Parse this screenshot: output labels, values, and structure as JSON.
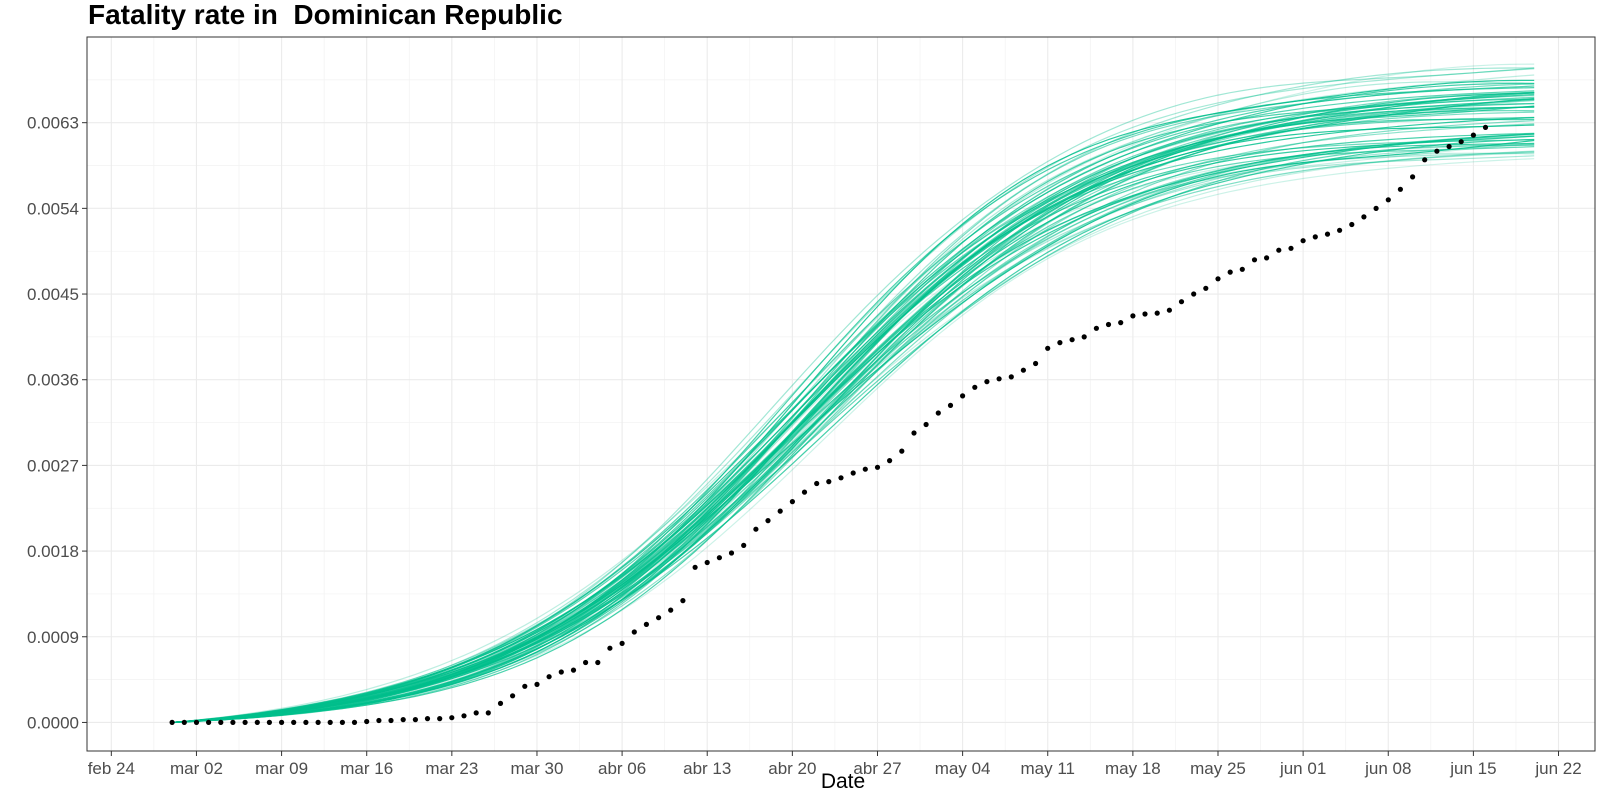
{
  "chart_data": {
    "type": "line",
    "title": "Fatality rate in  Dominican Republic",
    "xlabel": "Date",
    "ylabel": "",
    "grid": true,
    "legend": "none",
    "x_ticks": [
      "feb 24",
      "mar 02",
      "mar 09",
      "mar 16",
      "mar 23",
      "mar 30",
      "abr 06",
      "abr 13",
      "abr 20",
      "abr 27",
      "may 04",
      "may 11",
      "may 18",
      "may 25",
      "jun 01",
      "jun 08",
      "jun 15",
      "jun 22"
    ],
    "y_ticks": [
      "0.0000",
      "0.0009",
      "0.0018",
      "0.0027",
      "0.0036",
      "0.0045",
      "0.0054",
      "0.0063"
    ],
    "xlim": [
      "2020-02-22",
      "2020-06-25"
    ],
    "ylim": [
      -0.0003,
      0.0072
    ],
    "simulation_series": {
      "description_count": 60,
      "color": "#00BF8C",
      "x_start": "2020-02-29",
      "x_end": "2020-06-20",
      "final_value_range": [
        0.0057,
        0.0069
      ]
    },
    "observed": {
      "color": "#000000",
      "x_start": "2020-02-29",
      "x_end": "2020-06-20",
      "values": [
        0.0,
        0.0,
        0.0,
        0.0,
        0.0,
        0.0,
        0.0,
        0.0,
        0.0,
        0.0,
        0.0,
        0.0,
        0.0,
        0.0,
        0.0,
        0.0,
        1e-05,
        2e-05,
        2e-05,
        3e-05,
        3e-05,
        4e-05,
        4e-05,
        5e-05,
        7e-05,
        0.0001,
        0.0001,
        0.0002,
        0.00028,
        0.00038,
        0.0004,
        0.00048,
        0.00053,
        0.00055,
        0.00063,
        0.00063,
        0.00078,
        0.00083,
        0.00095,
        0.00103,
        0.0011,
        0.00118,
        0.00128,
        0.00163,
        0.00168,
        0.00173,
        0.00178,
        0.00186,
        0.00203,
        0.00212,
        0.00222,
        0.00232,
        0.00242,
        0.00251,
        0.00253,
        0.00257,
        0.00262,
        0.00266,
        0.00268,
        0.00275,
        0.00285,
        0.00304,
        0.00313,
        0.00325,
        0.00333,
        0.00343,
        0.00352,
        0.00358,
        0.00361,
        0.00363,
        0.0037,
        0.00377,
        0.00393,
        0.00399,
        0.00402,
        0.00405,
        0.00414,
        0.00418,
        0.0042,
        0.00427,
        0.00429,
        0.0043,
        0.00433,
        0.00442,
        0.0045,
        0.00456,
        0.00466,
        0.00473,
        0.00476,
        0.00486,
        0.00488,
        0.00496,
        0.00498,
        0.00506,
        0.0051,
        0.00513,
        0.00517,
        0.00523,
        0.00531,
        0.0054,
        0.00549,
        0.0056,
        0.00573,
        0.00591,
        0.006,
        0.00605,
        0.0061,
        0.00617,
        0.00625
      ]
    }
  }
}
